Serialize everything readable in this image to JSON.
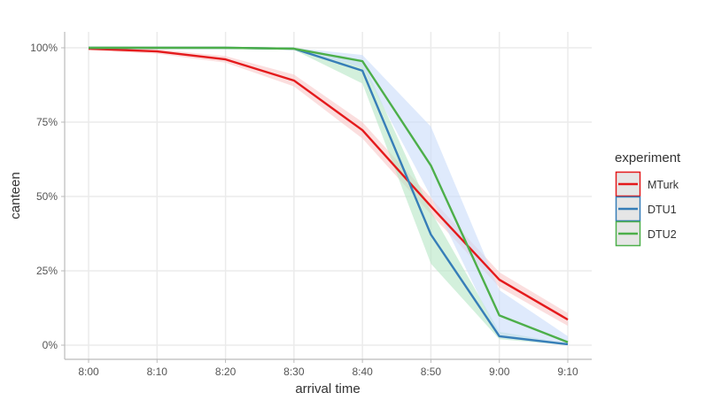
{
  "chart_data": {
    "type": "line",
    "title": "",
    "xlabel": "arrival time",
    "ylabel": "canteen",
    "x": [
      "8:00",
      "8:10",
      "8:20",
      "8:30",
      "8:40",
      "8:50",
      "9:00",
      "9:10"
    ],
    "ylim": [
      0,
      100
    ],
    "yticks": [
      0,
      25,
      50,
      75,
      100
    ],
    "ytick_labels": [
      "0%",
      "25%",
      "50%",
      "75%",
      "100%"
    ],
    "grid": true,
    "legend": {
      "title": "experiment",
      "placement": "right"
    },
    "series": [
      {
        "name": "MTurk",
        "color": "#e41a1c",
        "ribbon_color": "#f8c8c8",
        "values": [
          99.7,
          98.8,
          96.1,
          89.0,
          72.3,
          46.7,
          22.0,
          8.6
        ],
        "lower": [
          99.2,
          98.0,
          95.0,
          87.0,
          69.5,
          44.0,
          19.5,
          6.5
        ],
        "upper": [
          100,
          99.5,
          97.2,
          91.0,
          75.0,
          49.5,
          24.5,
          10.8
        ]
      },
      {
        "name": "DTU1",
        "color": "#377eb8",
        "ribbon_color": "#b6e6c4",
        "values": [
          100,
          100,
          100,
          99.7,
          92.3,
          37.2,
          3.0,
          0.3
        ],
        "lower": [
          100,
          100,
          100,
          99.3,
          88.0,
          27.4,
          2.0,
          0
        ],
        "upper": [
          100,
          100,
          100,
          100,
          96.0,
          45.0,
          4.5,
          0.6
        ]
      },
      {
        "name": "DTU2",
        "color": "#4daf4a",
        "ribbon_color": "#c9dcfa",
        "values": [
          100,
          100,
          100,
          99.7,
          95.5,
          60.4,
          10.0,
          1.0
        ],
        "lower": [
          100,
          100,
          100,
          99.3,
          93.5,
          50.0,
          2.5,
          0
        ],
        "upper": [
          100,
          100,
          100,
          100,
          97.6,
          73.5,
          18.5,
          3.0
        ]
      }
    ]
  }
}
